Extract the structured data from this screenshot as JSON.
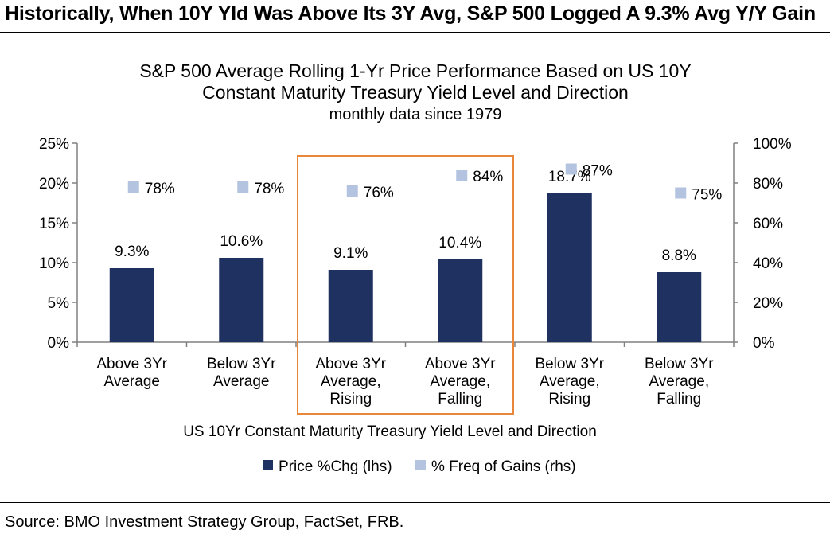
{
  "headline": "Historically, When 10Y Yld Was Above Its 3Y Avg, S&P 500 Logged A 9.3% Avg Y/Y Gain",
  "source": "Source: BMO Investment Strategy Group, FactSet, FRB.",
  "colors": {
    "bar": "#1f3160",
    "marker": "#b4c3e0",
    "highlight_box": "#e8873a",
    "axis": "#808080"
  },
  "chart_data": {
    "type": "bar",
    "title": [
      "S&P 500 Average Rolling 1-Yr Price Performance Based on US 10Y",
      "Constant Maturity Treasury Yield Level and Direction"
    ],
    "subtitle": "monthly data since 1979",
    "xlabel": "US 10Yr Constant Maturity Treasury Yield Level and Direction",
    "categories": [
      [
        "Above 3Yr",
        "Average"
      ],
      [
        "Below 3Yr",
        "Average"
      ],
      [
        "Above 3Yr",
        "Average,",
        "Rising"
      ],
      [
        "Above 3Yr",
        "Average,",
        "Falling"
      ],
      [
        "Below 3Yr",
        "Average,",
        "Rising"
      ],
      [
        "Below 3Yr",
        "Average,",
        "Falling"
      ]
    ],
    "series": [
      {
        "name": "Price %Chg (lhs)",
        "type": "bar",
        "axis": "left",
        "values": [
          9.3,
          10.6,
          9.1,
          10.4,
          18.7,
          8.8
        ],
        "labels": [
          "9.3%",
          "10.6%",
          "9.1%",
          "10.4%",
          "18.7%",
          "8.8%"
        ]
      },
      {
        "name": "% Freq of Gains (rhs)",
        "type": "scatter",
        "axis": "right",
        "values": [
          78,
          78,
          76,
          84,
          87,
          75
        ],
        "labels": [
          "78%",
          "78%",
          "76%",
          "84%",
          "87%",
          "75%"
        ]
      }
    ],
    "y_left": {
      "ylim": [
        0,
        25
      ],
      "ticks": [
        0,
        5,
        10,
        15,
        20,
        25
      ],
      "tick_labels": [
        "0%",
        "5%",
        "10%",
        "15%",
        "20%",
        "25%"
      ]
    },
    "y_right": {
      "ylim": [
        0,
        100
      ],
      "ticks": [
        0,
        20,
        40,
        60,
        80,
        100
      ],
      "tick_labels": [
        "0%",
        "20%",
        "40%",
        "60%",
        "80%",
        "100%"
      ]
    },
    "highlighted_categories": [
      2,
      3
    ],
    "legend": {
      "placement": "bottom"
    },
    "grid": false
  }
}
